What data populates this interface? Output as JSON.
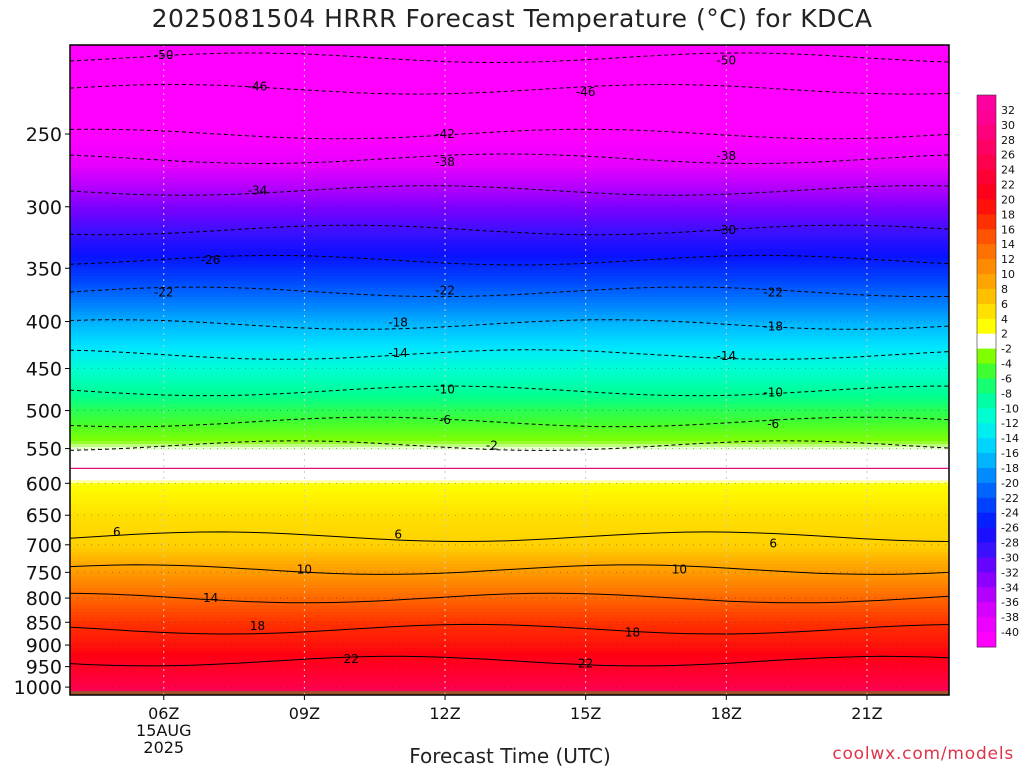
{
  "page": {
    "title": "2025081504 HRRR Forecast Temperature (°C) for KDCA",
    "xlabel": "Forecast Time (UTC)",
    "credit": "coolwx.com/models"
  },
  "chart_data": {
    "type": "heatmap",
    "title": "2025081504 HRRR Forecast Temperature (°C) for KDCA",
    "xlabel": "Forecast Time (UTC)",
    "ylabel": "",
    "x_unit": "hours since 2025-08-15 04Z",
    "xlim": [
      4,
      22.75
    ],
    "ylim": [
      1020,
      200
    ],
    "y_scale": "log (pressure, hPa, decreasing upward)",
    "x_ticks": [
      {
        "x": 6,
        "label": "06Z",
        "sub": [
          "15AUG",
          "2025"
        ]
      },
      {
        "x": 9,
        "label": "09Z"
      },
      {
        "x": 12,
        "label": "12Z"
      },
      {
        "x": 15,
        "label": "15Z"
      },
      {
        "x": 18,
        "label": "18Z"
      },
      {
        "x": 21,
        "label": "21Z"
      }
    ],
    "y_ticks": [
      250,
      300,
      350,
      400,
      450,
      500,
      550,
      600,
      650,
      700,
      750,
      800,
      850,
      900,
      950,
      1000
    ],
    "colorbar_ticks": [
      32,
      30,
      28,
      26,
      24,
      22,
      20,
      18,
      16,
      14,
      12,
      10,
      8,
      6,
      4,
      2,
      -2,
      -4,
      -6,
      -8,
      -10,
      -12,
      -14,
      -16,
      -18,
      -20,
      -22,
      -24,
      -26,
      -28,
      -30,
      -32,
      -34,
      -36,
      -38,
      -40
    ],
    "contour_labels": [
      {
        "value": "-50",
        "points": [
          [
            6,
            205
          ],
          [
            18,
            208
          ]
        ]
      },
      {
        "value": "-46",
        "points": [
          [
            8,
            222
          ],
          [
            15,
            225
          ]
        ]
      },
      {
        "value": "-42",
        "points": [
          [
            12,
            250
          ]
        ]
      },
      {
        "value": "-38",
        "points": [
          [
            12,
            268
          ],
          [
            18,
            264
          ]
        ]
      },
      {
        "value": "-34",
        "points": [
          [
            8,
            288
          ]
        ]
      },
      {
        "value": "-30",
        "points": [
          [
            18,
            318
          ]
        ]
      },
      {
        "value": "-26",
        "points": [
          [
            7,
            343
          ]
        ]
      },
      {
        "value": "-22",
        "points": [
          [
            6,
            372
          ],
          [
            12,
            370
          ],
          [
            19,
            372
          ]
        ]
      },
      {
        "value": "-18",
        "points": [
          [
            11,
            401
          ],
          [
            19,
            405
          ]
        ]
      },
      {
        "value": "-14",
        "points": [
          [
            11,
            433
          ],
          [
            18,
            436
          ]
        ]
      },
      {
        "value": "-10",
        "points": [
          [
            12,
            474
          ],
          [
            19,
            478
          ]
        ]
      },
      {
        "value": "-6",
        "points": [
          [
            12,
            512
          ],
          [
            19,
            517
          ]
        ]
      },
      {
        "value": "-2",
        "points": [
          [
            13,
            546
          ]
        ]
      },
      {
        "value": "6",
        "points": [
          [
            5,
            678
          ],
          [
            11,
            682
          ],
          [
            19,
            698
          ]
        ]
      },
      {
        "value": "10",
        "points": [
          [
            9,
            745
          ],
          [
            17,
            745
          ]
        ]
      },
      {
        "value": "14",
        "points": [
          [
            7,
            800
          ]
        ]
      },
      {
        "value": "18",
        "points": [
          [
            8,
            858
          ],
          [
            16,
            872
          ]
        ]
      },
      {
        "value": "22",
        "points": [
          [
            10,
            932
          ],
          [
            15,
            942
          ]
        ]
      }
    ],
    "freezing_level_hpa": 578,
    "ground_shading_below_hpa": 1010,
    "grid": true
  }
}
